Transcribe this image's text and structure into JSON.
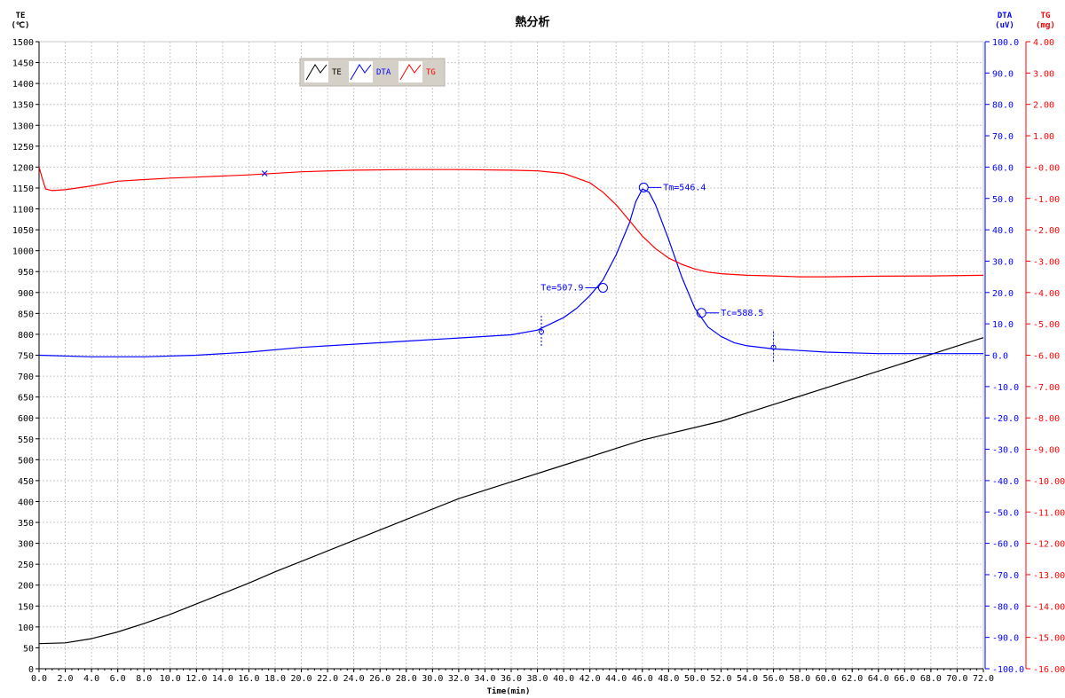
{
  "chart_data": {
    "type": "line",
    "title": "熱分析",
    "xlabel": "Time(min)",
    "xlim": [
      0,
      72
    ],
    "x_ticks": [
      "0.0",
      "2.0",
      "4.0",
      "6.0",
      "8.0",
      "10.0",
      "12.0",
      "14.0",
      "16.0",
      "18.0",
      "20.0",
      "22.0",
      "24.0",
      "26.0",
      "28.0",
      "30.0",
      "32.0",
      "34.0",
      "36.0",
      "38.0",
      "40.0",
      "42.0",
      "44.0",
      "46.0",
      "48.0",
      "50.0",
      "52.0",
      "54.0",
      "56.0",
      "58.0",
      "60.0",
      "62.0",
      "64.0",
      "66.0",
      "68.0",
      "70.0",
      "72.0"
    ],
    "grid": true,
    "legend_position": "top-left",
    "axes": {
      "te": {
        "label_line1": "TE",
        "label_line2": "(℃)",
        "ylim": [
          0,
          1500
        ],
        "ticks": [
          "0",
          "50",
          "100",
          "150",
          "200",
          "250",
          "300",
          "350",
          "400",
          "450",
          "500",
          "550",
          "600",
          "650",
          "700",
          "750",
          "800",
          "850",
          "900",
          "950",
          "1000",
          "1050",
          "1100",
          "1150",
          "1200",
          "1250",
          "1300",
          "1350",
          "1400",
          "1450",
          "1500"
        ],
        "color": "#000000"
      },
      "dta": {
        "label_line1": "DTA",
        "label_line2": "(uV)",
        "ylim": [
          -100,
          100
        ],
        "ticks": [
          "-100.0",
          "-90.0",
          "-80.0",
          "-70.0",
          "-60.0",
          "-50.0",
          "-40.0",
          "-30.0",
          "-20.0",
          "-10.0",
          "0.0",
          "10.0",
          "20.0",
          "30.0",
          "40.0",
          "50.0",
          "60.0",
          "70.0",
          "80.0",
          "90.0",
          "100.0"
        ],
        "color": "#0000ff"
      },
      "tg": {
        "label_line1": "TG",
        "label_line2": "(mg)",
        "ylim": [
          -16,
          4
        ],
        "ticks": [
          "-16.00",
          "-15.00",
          "-14.00",
          "-13.00",
          "-12.00",
          "-11.00",
          "-10.00",
          "-9.00",
          "-8.00",
          "-7.00",
          "-6.00",
          "-5.00",
          "-4.00",
          "-3.00",
          "-2.00",
          "-1.00",
          "-0.00",
          "1.00",
          "2.00",
          "3.00",
          "4.00"
        ],
        "color": "#ff0000"
      }
    },
    "series": [
      {
        "name": "TE",
        "axis": "te",
        "color": "#000000",
        "x": [
          0,
          2,
          4,
          6,
          8,
          10,
          12,
          14,
          16,
          18,
          20,
          24,
          28,
          32,
          36,
          40,
          44,
          46,
          48,
          52,
          56,
          60,
          64,
          68,
          72
        ],
        "y": [
          60,
          62,
          72,
          88,
          108,
          130,
          155,
          180,
          205,
          232,
          257,
          307,
          357,
          407,
          447,
          487,
          527,
          547,
          562,
          592,
          632,
          672,
          712,
          752,
          792
        ]
      },
      {
        "name": "DTA",
        "axis": "dta",
        "color": "#0000ff",
        "x": [
          0,
          4,
          8,
          12,
          16,
          20,
          24,
          28,
          32,
          36,
          38,
          40,
          41,
          42,
          43,
          44,
          45,
          45.5,
          46,
          46.5,
          47,
          48,
          49,
          50,
          51,
          52,
          53,
          54,
          56,
          60,
          64,
          68,
          72
        ],
        "y": [
          0,
          -0.5,
          -0.5,
          0,
          1,
          2.5,
          3.5,
          4.5,
          5.5,
          6.5,
          8,
          12,
          15,
          19,
          24,
          32,
          42,
          49,
          53,
          52,
          48,
          37,
          25,
          15,
          9,
          6,
          4,
          3,
          2,
          1,
          0.5,
          0.5,
          0.5
        ]
      },
      {
        "name": "TG",
        "axis": "tg",
        "color": "#ff0000",
        "x": [
          0,
          0.2,
          0.5,
          1,
          2,
          4,
          6,
          8,
          10,
          12,
          16,
          20,
          24,
          28,
          32,
          36,
          38,
          40,
          42,
          43,
          44,
          45,
          46,
          47,
          48,
          49,
          50,
          51,
          52,
          54,
          56,
          58,
          60,
          64,
          68,
          72
        ],
        "y": [
          0,
          -0.3,
          -0.7,
          -0.75,
          -0.72,
          -0.6,
          -0.45,
          -0.4,
          -0.35,
          -0.32,
          -0.25,
          -0.15,
          -0.1,
          -0.08,
          -0.08,
          -0.1,
          -0.12,
          -0.2,
          -0.5,
          -0.8,
          -1.2,
          -1.7,
          -2.2,
          -2.6,
          -2.9,
          -3.1,
          -3.25,
          -3.35,
          -3.4,
          -3.45,
          -3.47,
          -3.5,
          -3.5,
          -3.48,
          -3.47,
          -3.45
        ]
      }
    ],
    "legend": [
      {
        "name": "TE",
        "color": "#000000"
      },
      {
        "name": "DTA",
        "color": "#0000ff"
      },
      {
        "name": "TG",
        "color": "#ff0000"
      }
    ],
    "annotations": [
      {
        "text": "Te=507.9",
        "x": 43.0,
        "axis": "dta",
        "y": 21.5,
        "side": "left"
      },
      {
        "text": "Tm=546.4",
        "x": 46.1,
        "axis": "dta",
        "y": 53.5,
        "side": "right"
      },
      {
        "text": "Tc=588.5",
        "x": 50.5,
        "axis": "dta",
        "y": 13.5,
        "side": "right"
      }
    ],
    "baseline_markers": [
      {
        "x": 38.3,
        "axis": "dta",
        "y": 7.5
      },
      {
        "x": 56.0,
        "axis": "dta",
        "y": 2.5
      }
    ],
    "tg_marker": {
      "x": 17.2,
      "axis": "tg",
      "y": -0.2
    }
  }
}
